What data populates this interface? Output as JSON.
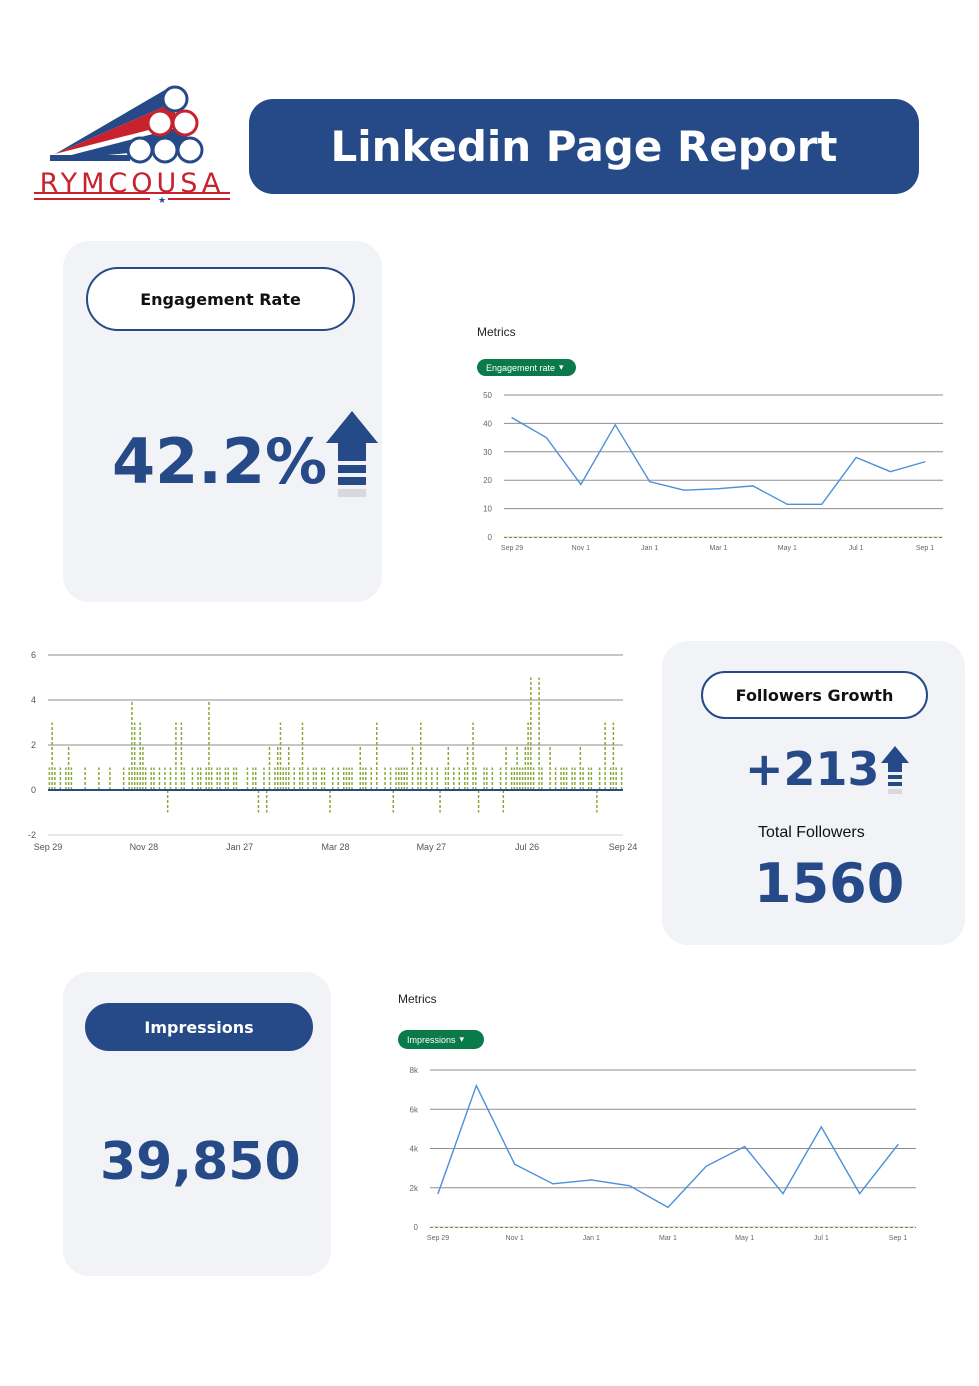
{
  "header": {
    "logo_text": "RYMCOUSA",
    "title": "Linkedin Page Report"
  },
  "colors": {
    "brand_blue": "#254a87",
    "brand_red": "#c8222f",
    "card_bg": "#f2f3f7",
    "chip_green": "#0a7a4b",
    "line_blue": "#4a90d9",
    "bar_green": "#8aa83a"
  },
  "engagement": {
    "label": "Engagement Rate",
    "value": "42.2%",
    "trend_icon": "arrow-up-icon"
  },
  "followers": {
    "label": "Followers Growth",
    "growth": "+213",
    "trend_icon": "arrow-up-icon",
    "total_label": "Total Followers",
    "total": "1560"
  },
  "impressions": {
    "label": "Impressions",
    "value": "39,850"
  },
  "chart_data": [
    {
      "id": "engagement-chart",
      "type": "line",
      "title": "Metrics",
      "selector": "Engagement rate",
      "x": [
        "Sep 29",
        "",
        "Nov 1",
        "",
        "Jan 1",
        "",
        "Mar 1",
        "",
        "May 1",
        "",
        "Jul 1",
        "",
        "Sep 1"
      ],
      "series": [
        {
          "values": [
            42,
            35,
            18.5,
            39.5,
            19.5,
            16.5,
            17,
            18,
            11.5,
            11.5,
            28,
            23,
            26.5
          ]
        }
      ],
      "xticks": [
        "Sep 29",
        "Nov 1",
        "Jan 1",
        "Mar 1",
        "May 1",
        "Jul 1",
        "Sep 1"
      ],
      "yticks": [
        "0",
        "10",
        "20",
        "30",
        "40",
        "50"
      ],
      "ylim": [
        0,
        50
      ],
      "grid": true
    },
    {
      "id": "followers-chart",
      "type": "bar",
      "xticks": [
        "Sep 29",
        "Nov 28",
        "Jan 27",
        "Mar 28",
        "May 27",
        "Jul 26",
        "Sep 24"
      ],
      "yticks": [
        "-2",
        "0",
        "2",
        "4",
        "6"
      ],
      "ylim": [
        -2,
        6
      ],
      "grid": true,
      "values": [
        1,
        3,
        1,
        0,
        1,
        0,
        1,
        2,
        1,
        0,
        0,
        0,
        0,
        1,
        0,
        0,
        0,
        0,
        1,
        0,
        0,
        0,
        1,
        0,
        0,
        0,
        0,
        1,
        0,
        1,
        4,
        3,
        1,
        3,
        2,
        1,
        0,
        1,
        1,
        0,
        1,
        0,
        1,
        -1,
        1,
        0,
        3,
        0,
        3,
        1,
        0,
        0,
        1,
        0,
        1,
        1,
        0,
        1,
        4,
        1,
        0,
        1,
        1,
        0,
        1,
        1,
        0,
        1,
        1,
        0,
        0,
        0,
        1,
        0,
        1,
        1,
        -1,
        0,
        1,
        -1,
        2,
        0,
        1,
        2,
        3,
        1,
        1,
        2,
        0,
        1,
        0,
        1,
        3,
        0,
        1,
        0,
        1,
        1,
        0,
        1,
        1,
        0,
        -1,
        1,
        0,
        1,
        0,
        1,
        1,
        1,
        1,
        0,
        0,
        2,
        1,
        1,
        0,
        1,
        0,
        3,
        0,
        0,
        1,
        0,
        1,
        -1,
        1,
        1,
        1,
        1,
        1,
        0,
        2,
        0,
        1,
        3,
        0,
        1,
        0,
        1,
        0,
        1,
        -1,
        0,
        1,
        2,
        0,
        1,
        0,
        1,
        0,
        1,
        2,
        0,
        3,
        1,
        -1,
        0,
        1,
        1,
        0,
        1,
        0,
        0,
        1,
        -1,
        2,
        0,
        1,
        1,
        2,
        1,
        1,
        2,
        3,
        5,
        1,
        0,
        5,
        1,
        0,
        0,
        2,
        0,
        1,
        0,
        1,
        1,
        1,
        0,
        1,
        1,
        0,
        2,
        1,
        0,
        1,
        1,
        0,
        -1,
        1,
        0,
        3,
        0,
        1,
        3,
        1,
        0,
        1
      ]
    },
    {
      "id": "impressions-chart",
      "type": "line",
      "title": "Metrics",
      "selector": "Impressions",
      "x": [
        "Sep 29",
        "",
        "Nov 1",
        "",
        "Jan 1",
        "",
        "Mar 1",
        "",
        "May 1",
        "",
        "Jul 1",
        "",
        "Sep 1"
      ],
      "series": [
        {
          "values": [
            1700,
            7200,
            3200,
            2200,
            2400,
            2100,
            1000,
            3100,
            4100,
            1700,
            5100,
            1700,
            4200
          ]
        }
      ],
      "xticks": [
        "Sep 29",
        "Nov 1",
        "Jan 1",
        "Mar 1",
        "May 1",
        "Jul 1",
        "Sep 1"
      ],
      "yticks": [
        "0",
        "2k",
        "4k",
        "6k",
        "8k"
      ],
      "ylim": [
        0,
        8000
      ],
      "grid": true
    }
  ]
}
